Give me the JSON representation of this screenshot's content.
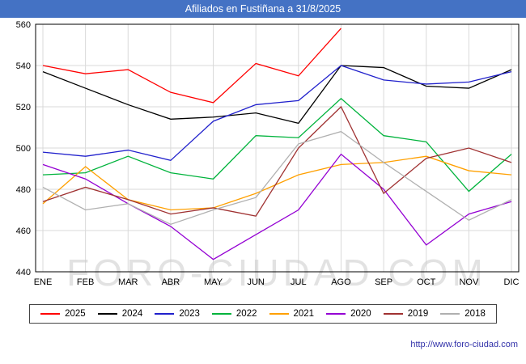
{
  "header": {
    "title": "Afiliados en Fustiñana a 31/8/2025",
    "bg_color": "#4472c4",
    "text_color": "#ffffff"
  },
  "watermark": "FORO-CIUDAD.COM",
  "footer": {
    "url": "http://www.foro-ciudad.com"
  },
  "chart_data": {
    "type": "line",
    "title": "Afiliados en Fustiñana a 31/8/2025",
    "categories": [
      "ENE",
      "FEB",
      "MAR",
      "ABR",
      "MAY",
      "JUN",
      "JUL",
      "AGO",
      "SEP",
      "OCT",
      "NOV",
      "DIC"
    ],
    "ylim": [
      440,
      560
    ],
    "yticks": [
      440,
      460,
      480,
      500,
      520,
      540,
      560
    ],
    "grid": true,
    "legend_position": "bottom",
    "series": [
      {
        "name": "2025",
        "color": "#ff0000",
        "values": [
          540,
          536,
          538,
          527,
          522,
          541,
          535,
          558
        ]
      },
      {
        "name": "2024",
        "color": "#000000",
        "values": [
          537,
          529,
          521,
          514,
          515,
          517,
          512,
          540,
          539,
          530,
          529,
          538
        ]
      },
      {
        "name": "2023",
        "color": "#2020cc",
        "values": [
          498,
          496,
          499,
          494,
          513,
          521,
          523,
          540,
          533,
          531,
          532,
          537
        ]
      },
      {
        "name": "2022",
        "color": "#00b33c",
        "values": [
          487,
          488,
          496,
          488,
          485,
          506,
          505,
          524,
          506,
          503,
          479,
          497
        ]
      },
      {
        "name": "2021",
        "color": "#ffa000",
        "values": [
          473,
          491,
          475,
          470,
          471,
          478,
          487,
          492,
          493,
          496,
          489,
          487
        ]
      },
      {
        "name": "2020",
        "color": "#9400d3",
        "values": [
          492,
          485,
          473,
          462,
          446,
          458,
          470,
          497,
          480,
          453,
          468,
          474
        ]
      },
      {
        "name": "2019",
        "color": "#a03232",
        "values": [
          474,
          481,
          475,
          468,
          471,
          467,
          500,
          520,
          478,
          495,
          500,
          493
        ]
      },
      {
        "name": "2018",
        "color": "#b0b0b0",
        "values": [
          481,
          470,
          473,
          463,
          470,
          476,
          502,
          508,
          493,
          479,
          465,
          475
        ]
      }
    ]
  }
}
